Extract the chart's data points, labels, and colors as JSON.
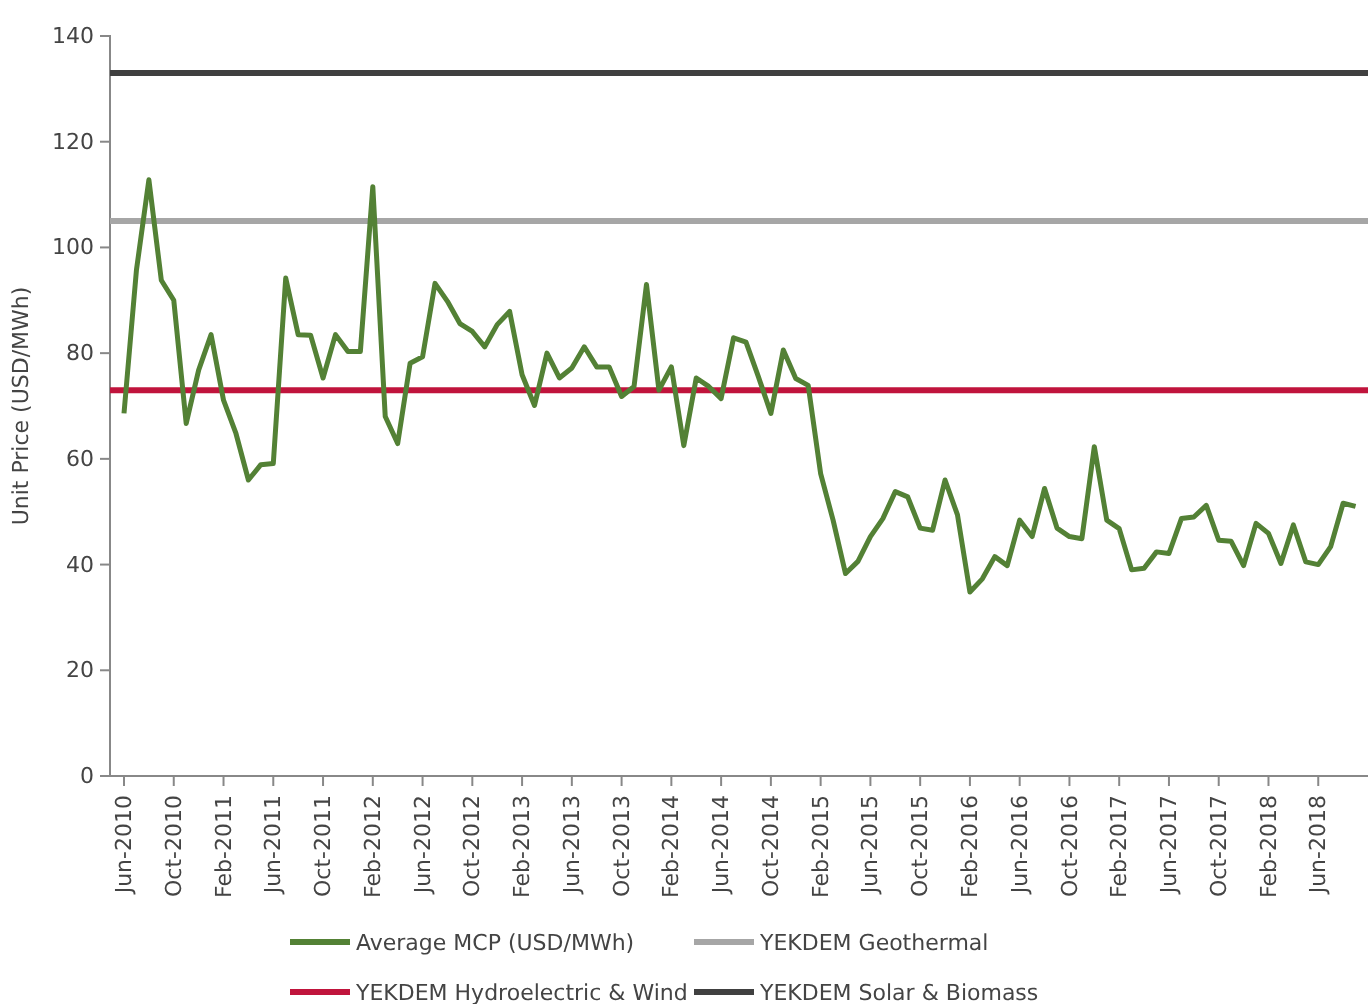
{
  "chart_data": {
    "type": "line",
    "ylabel": "Unit Price (USD/MWh)",
    "categories": [
      "Jun-2010",
      null,
      null,
      null,
      "Oct-2010",
      null,
      null,
      null,
      "Feb-2011",
      null,
      null,
      null,
      "Jun-2011",
      null,
      null,
      null,
      "Oct-2011",
      null,
      null,
      null,
      "Feb-2012",
      null,
      null,
      null,
      "Jun-2012",
      null,
      null,
      null,
      "Oct-2012",
      null,
      null,
      null,
      "Feb-2013",
      null,
      null,
      null,
      "Jun-2013",
      null,
      null,
      null,
      "Oct-2013",
      null,
      null,
      null,
      "Feb-2014",
      null,
      null,
      null,
      "Jun-2014",
      null,
      null,
      null,
      "Oct-2014",
      null,
      null,
      null,
      "Feb-2015",
      null,
      null,
      null,
      "Jun-2015",
      null,
      null,
      null,
      "Oct-2015",
      null,
      null,
      null,
      "Feb-2016",
      null,
      null,
      null,
      "Jun-2016",
      null,
      null,
      null,
      "Oct-2016",
      null,
      null,
      null,
      "Feb-2017",
      null,
      null,
      null,
      "Jun-2017",
      null,
      null,
      null,
      "Oct-2017",
      null,
      null,
      null,
      "Feb-2018",
      null,
      null,
      null,
      "Jun-2018",
      null,
      null,
      null
    ],
    "series": [
      {
        "name": "Average MCP (USD/MWh)",
        "color": "#538135",
        "values": [
          68.6,
          95.7,
          112.8,
          93.8,
          90,
          66.7,
          76.8,
          83.5,
          71.1,
          64.8,
          56,
          58.9,
          59.1,
          94.2,
          83.5,
          83.4,
          75.3,
          83.5,
          80.3,
          80.3,
          111.5,
          68,
          62.9,
          78.1,
          79.3,
          93.2,
          89.8,
          85.6,
          84.1,
          81.2,
          85.4,
          87.9,
          75.9,
          70.1,
          80,
          75.3,
          77.2,
          81.2,
          77.4,
          77.4,
          71.8,
          73.7,
          93,
          73,
          77.4,
          62.5,
          75.3,
          73.7,
          71.4,
          82.9,
          82.1,
          75.5,
          68.6,
          80.6,
          75.2,
          73.9,
          57.2,
          48.4,
          38.3,
          40.6,
          45.3,
          48.7,
          53.8,
          52.8,
          46.9,
          46.5,
          56,
          49.4,
          34.8,
          37.3,
          41.5,
          39.8,
          48.4,
          45.3,
          54.4,
          46.9,
          45.3,
          44.9,
          62.3,
          48.4,
          46.8,
          39,
          39.3,
          42.4,
          42.1,
          48.7,
          49,
          51.2,
          44.6,
          44.4,
          39.8,
          47.8,
          45.9,
          40.2,
          47.5,
          40.5,
          40,
          43.4,
          51.6,
          51
        ]
      }
    ],
    "ref_lines": [
      {
        "axis": "y",
        "value": 105,
        "label": "YEKDEM Geothermal",
        "color": "#a6a6a6"
      },
      {
        "axis": "y",
        "value": 73,
        "label": "YEKDEM Hydroelectric & Wind",
        "color": "#c0143c"
      },
      {
        "axis": "y",
        "value": 133,
        "label": "YEKDEM Solar & Biomass",
        "color": "#404040"
      }
    ],
    "ylim": [
      0,
      140
    ],
    "yticks": [
      0,
      20,
      40,
      60,
      80,
      100,
      120,
      140
    ],
    "grid": false,
    "legend": "bottom",
    "marker": "none",
    "line_style": "solid"
  }
}
